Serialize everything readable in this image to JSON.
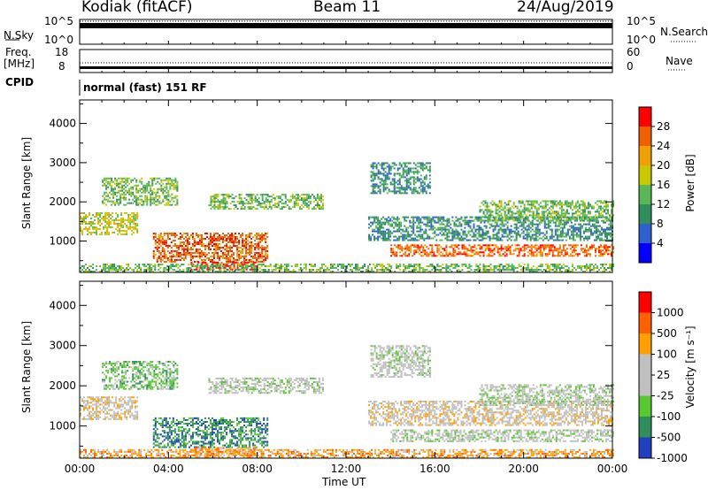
{
  "header": {
    "station": "Kodiak (fitACF)",
    "beam": "Beam 11",
    "date": "24/Aug/2019"
  },
  "top_panels": {
    "nsky_label": "N.Sky",
    "nsearch_label": "N.Search",
    "nsky_ticks": [
      "10^5",
      "10^0"
    ],
    "nsearch_ticks": [
      "10^5",
      "10^0"
    ],
    "freq_label_1": "Freq.",
    "freq_label_2": "[MHz]",
    "freq_ticks": [
      "18",
      "8"
    ],
    "nave_label": "Nave",
    "nave_ticks": [
      "60",
      "0"
    ],
    "cpid_label": "CPID",
    "cpid_value": "normal (fast) 151 RF"
  },
  "colors": {
    "power": [
      "#0000ff",
      "#3060d0",
      "#2f8f5a",
      "#58b858",
      "#c8c800",
      "#f0a000",
      "#f06000",
      "#ff0000"
    ],
    "velocity": [
      "#2040c0",
      "#2f8f5a",
      "#58c830",
      "#c0c0c0",
      "#c0c0c0",
      "#ffa000",
      "#ff6000",
      "#ff0000"
    ]
  },
  "chart_data": [
    {
      "type": "heatmap",
      "name": "power",
      "ylabel": "Slant Range [km]",
      "yticks": [
        "4000",
        "3000",
        "2000",
        "1000"
      ],
      "ylim": [
        200,
        4600
      ],
      "xlim": [
        0,
        24
      ],
      "colorbar_label": "Power [dB]",
      "colorbar_ticks": [
        "28",
        "24",
        "20",
        "16",
        "12",
        "8",
        "4"
      ],
      "bands": [
        {
          "t0": 0.0,
          "t1": 2.6,
          "r0": 1150,
          "r1": 1700,
          "level": 4
        },
        {
          "t0": 1.0,
          "t1": 4.4,
          "r0": 1900,
          "r1": 2600,
          "level": 3
        },
        {
          "t0": 3.3,
          "t1": 8.5,
          "r0": 450,
          "r1": 1200,
          "level": 6
        },
        {
          "t0": 5.0,
          "t1": 8.0,
          "r0": 250,
          "r1": 450,
          "level": 7
        },
        {
          "t0": 5.8,
          "t1": 11.0,
          "r0": 1800,
          "r1": 2200,
          "level": 3
        },
        {
          "t0": 13.1,
          "t1": 15.8,
          "r0": 2200,
          "r1": 3000,
          "level": 2
        },
        {
          "t0": 13.0,
          "t1": 24.0,
          "r0": 1000,
          "r1": 1600,
          "level": 2
        },
        {
          "t0": 14.0,
          "t1": 24.0,
          "r0": 600,
          "r1": 900,
          "level": 6
        },
        {
          "t0": 0.0,
          "t1": 24.0,
          "r0": 200,
          "r1": 420,
          "level": 3
        },
        {
          "t0": 18.0,
          "t1": 24.0,
          "r0": 1500,
          "r1": 2000,
          "level": 3
        }
      ]
    },
    {
      "type": "heatmap",
      "name": "velocity",
      "ylabel": "Slant Range [km]",
      "yticks": [
        "4000",
        "3000",
        "2000",
        "1000"
      ],
      "ylim": [
        200,
        4600
      ],
      "xlim": [
        0,
        24
      ],
      "xticks": [
        "00:00",
        "04:00",
        "08:00",
        "12:00",
        "16:00",
        "20:00",
        "00:00"
      ],
      "xlabel": "Time UT",
      "colorbar_label": "Velocity [m s⁻¹]",
      "colorbar_ticks": [
        "1000",
        "500",
        "100",
        "25",
        "-25",
        "-100",
        "-500",
        "-1000"
      ],
      "bands": [
        {
          "t0": 0.0,
          "t1": 2.6,
          "r0": 1150,
          "r1": 1700,
          "level": 4
        },
        {
          "t0": 1.0,
          "t1": 4.4,
          "r0": 1900,
          "r1": 2600,
          "level": 2
        },
        {
          "t0": 3.3,
          "t1": 8.5,
          "r0": 450,
          "r1": 1200,
          "level": 1
        },
        {
          "t0": 5.0,
          "t1": 8.0,
          "r0": 250,
          "r1": 450,
          "level": 5
        },
        {
          "t0": 5.8,
          "t1": 11.0,
          "r0": 1800,
          "r1": 2200,
          "level": 3
        },
        {
          "t0": 13.1,
          "t1": 15.8,
          "r0": 2200,
          "r1": 3000,
          "level": 3
        },
        {
          "t0": 13.0,
          "t1": 24.0,
          "r0": 1000,
          "r1": 1600,
          "level": 4
        },
        {
          "t0": 14.0,
          "t1": 24.0,
          "r0": 600,
          "r1": 900,
          "level": 3
        },
        {
          "t0": 0.0,
          "t1": 24.0,
          "r0": 200,
          "r1": 420,
          "level": 5
        },
        {
          "t0": 18.0,
          "t1": 24.0,
          "r0": 1500,
          "r1": 2000,
          "level": 3
        }
      ]
    }
  ]
}
